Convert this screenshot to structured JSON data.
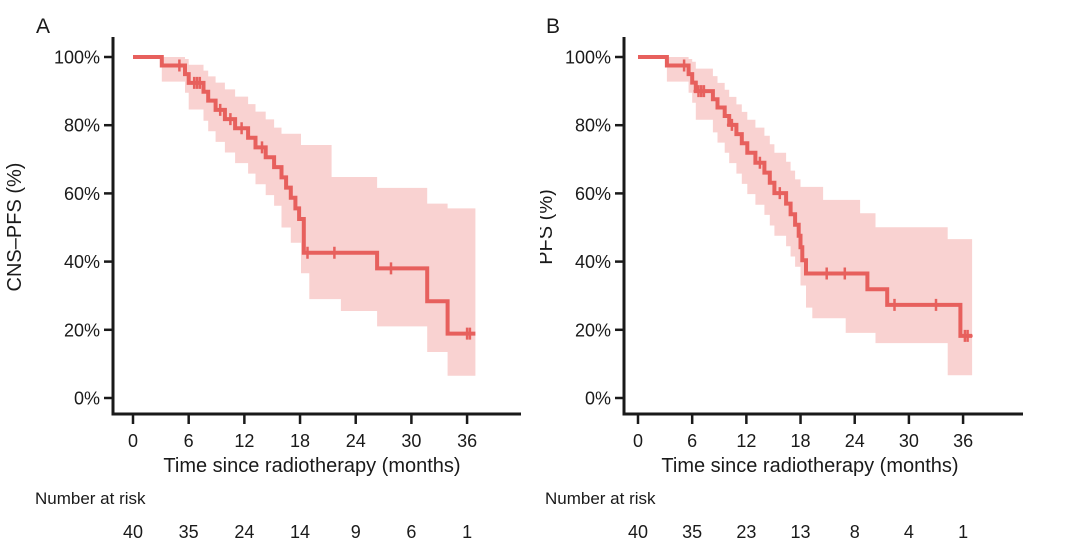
{
  "figure": {
    "background": "#ffffff",
    "description": "Two-panel Kaplan-Meier survival figure"
  },
  "colors": {
    "curve": "#e7605d",
    "confidence_band": "#f9d2d1",
    "axis": "#1a1a1a",
    "text": "#1a1a1a"
  },
  "chart_data": [
    {
      "type": "line",
      "variant": "kaplan-meier-step",
      "panel_label": "A",
      "ylabel": "CNS–PFS (%)",
      "xlabel": "Time since radiotherapy (months)",
      "xlim": [
        0,
        39
      ],
      "ylim": [
        0,
        100
      ],
      "grid": false,
      "legend": "none",
      "xticks": [
        0,
        6,
        12,
        18,
        24,
        30,
        36
      ],
      "ytick_values": [
        0,
        20,
        40,
        60,
        80,
        100
      ],
      "ytick_labels": [
        "0%",
        "20%",
        "40%",
        "60%",
        "80%",
        "100%"
      ],
      "risk_label": "Number at risk",
      "risk_times": [
        0,
        6,
        12,
        18,
        24,
        30,
        36
      ],
      "risk_counts": [
        40,
        35,
        24,
        14,
        9,
        6,
        1
      ],
      "curve_end_month": 36.9,
      "survival_steps": [
        {
          "t": 0,
          "s": 100
        },
        {
          "t": 3.1,
          "s": 97.5
        },
        {
          "t": 5.6,
          "s": 95.0
        },
        {
          "t": 6.0,
          "s": 92.4
        },
        {
          "t": 7.6,
          "s": 89.8
        },
        {
          "t": 8.1,
          "s": 87.2
        },
        {
          "t": 8.9,
          "s": 84.5
        },
        {
          "t": 9.9,
          "s": 81.8
        },
        {
          "t": 11.0,
          "s": 79.1
        },
        {
          "t": 12.4,
          "s": 76.3
        },
        {
          "t": 13.2,
          "s": 73.5
        },
        {
          "t": 14.3,
          "s": 70.6
        },
        {
          "t": 15.2,
          "s": 67.7
        },
        {
          "t": 16.0,
          "s": 64.7
        },
        {
          "t": 16.5,
          "s": 61.7
        },
        {
          "t": 17.0,
          "s": 58.7
        },
        {
          "t": 17.5,
          "s": 55.6
        },
        {
          "t": 17.9,
          "s": 52.5
        },
        {
          "t": 18.4,
          "s": 42.6
        },
        {
          "t": 26.3,
          "s": 38.0
        },
        {
          "t": 31.7,
          "s": 28.4
        },
        {
          "t": 33.9,
          "s": 18.9
        }
      ],
      "censor_marks": [
        {
          "t": 5.0,
          "s": 97.5
        },
        {
          "t": 6.6,
          "s": 92.4
        },
        {
          "t": 6.9,
          "s": 92.4
        },
        {
          "t": 7.2,
          "s": 92.4
        },
        {
          "t": 9.4,
          "s": 84.5
        },
        {
          "t": 10.5,
          "s": 81.8
        },
        {
          "t": 11.7,
          "s": 79.1
        },
        {
          "t": 13.9,
          "s": 73.5
        },
        {
          "t": 18.8,
          "s": 42.6
        },
        {
          "t": 21.7,
          "s": 42.6
        },
        {
          "t": 27.8,
          "s": 38.0
        },
        {
          "t": 36.0,
          "s": 18.9
        },
        {
          "t": 36.3,
          "s": 18.9
        }
      ],
      "confidence_band": [
        {
          "t": 3.1,
          "lo": 92.8,
          "hi": 100
        },
        {
          "t": 5.6,
          "lo": 89.5,
          "hi": 99.4
        },
        {
          "t": 6.0,
          "lo": 84.6,
          "hi": 97.7
        },
        {
          "t": 7.6,
          "lo": 81.3,
          "hi": 96.0
        },
        {
          "t": 8.1,
          "lo": 78.2,
          "hi": 94.3
        },
        {
          "t": 8.9,
          "lo": 75.1,
          "hi": 92.5
        },
        {
          "t": 9.9,
          "lo": 72.0,
          "hi": 90.5
        },
        {
          "t": 11.0,
          "lo": 68.9,
          "hi": 88.4
        },
        {
          "t": 12.4,
          "lo": 65.8,
          "hi": 86.2
        },
        {
          "t": 13.2,
          "lo": 62.7,
          "hi": 84.0
        },
        {
          "t": 14.3,
          "lo": 59.5,
          "hi": 81.7
        },
        {
          "t": 15.2,
          "lo": 56.4,
          "hi": 79.3
        },
        {
          "t": 16.0,
          "lo": 50.0,
          "hi": 77.5
        },
        {
          "t": 17.0,
          "lo": 45.5,
          "hi": 77.5
        },
        {
          "t": 18.1,
          "lo": 36.6,
          "hi": 74.2
        },
        {
          "t": 19.0,
          "lo": 29.0,
          "hi": 74.2
        },
        {
          "t": 21.4,
          "lo": 29.0,
          "hi": 64.8
        },
        {
          "t": 22.4,
          "lo": 25.5,
          "hi": 64.8
        },
        {
          "t": 26.3,
          "lo": 21.0,
          "hi": 61.6
        },
        {
          "t": 31.7,
          "lo": 13.5,
          "hi": 57.0
        },
        {
          "t": 33.9,
          "lo": 6.5,
          "hi": 55.6
        }
      ]
    },
    {
      "type": "line",
      "variant": "kaplan-meier-step",
      "panel_label": "B",
      "ylabel": "PFS (%)",
      "xlabel": "Time since radiotherapy (months)",
      "xlim": [
        0,
        39
      ],
      "ylim": [
        0,
        100
      ],
      "grid": false,
      "legend": "none",
      "xticks": [
        0,
        6,
        12,
        18,
        24,
        30,
        36
      ],
      "ytick_values": [
        0,
        20,
        40,
        60,
        80,
        100
      ],
      "ytick_labels": [
        "0%",
        "20%",
        "40%",
        "60%",
        "80%",
        "100%"
      ],
      "risk_label": "Number at risk",
      "risk_times": [
        0,
        6,
        12,
        18,
        24,
        30,
        36
      ],
      "risk_counts": [
        40,
        35,
        23,
        13,
        8,
        4,
        1
      ],
      "curve_end_month": 37.0,
      "survival_steps": [
        {
          "t": 0,
          "s": 100
        },
        {
          "t": 3.2,
          "s": 97.5
        },
        {
          "t": 5.6,
          "s": 95.0
        },
        {
          "t": 6.0,
          "s": 92.5
        },
        {
          "t": 6.4,
          "s": 90.0
        },
        {
          "t": 8.3,
          "s": 87.6
        },
        {
          "t": 8.8,
          "s": 85.2
        },
        {
          "t": 9.6,
          "s": 82.7
        },
        {
          "t": 10.1,
          "s": 80.1
        },
        {
          "t": 10.9,
          "s": 77.4
        },
        {
          "t": 11.5,
          "s": 74.7
        },
        {
          "t": 12.1,
          "s": 71.9
        },
        {
          "t": 13.0,
          "s": 69.0
        },
        {
          "t": 14.0,
          "s": 66.1
        },
        {
          "t": 14.6,
          "s": 63.1
        },
        {
          "t": 15.1,
          "s": 60.1
        },
        {
          "t": 16.4,
          "s": 57.0
        },
        {
          "t": 16.9,
          "s": 53.9
        },
        {
          "t": 17.4,
          "s": 50.8
        },
        {
          "t": 17.8,
          "s": 47.6
        },
        {
          "t": 18.0,
          "s": 44.2
        },
        {
          "t": 18.2,
          "s": 40.4
        },
        {
          "t": 18.6,
          "s": 36.5
        },
        {
          "t": 25.4,
          "s": 31.9
        },
        {
          "t": 27.6,
          "s": 27.3
        },
        {
          "t": 35.7,
          "s": 18.2
        }
      ],
      "censor_marks": [
        {
          "t": 5.1,
          "s": 97.5
        },
        {
          "t": 6.7,
          "s": 90.0
        },
        {
          "t": 7.0,
          "s": 90.0
        },
        {
          "t": 7.3,
          "s": 90.0
        },
        {
          "t": 10.4,
          "s": 80.1
        },
        {
          "t": 13.5,
          "s": 69.0
        },
        {
          "t": 15.7,
          "s": 60.1
        },
        {
          "t": 20.9,
          "s": 36.5
        },
        {
          "t": 22.9,
          "s": 36.5
        },
        {
          "t": 28.4,
          "s": 27.3
        },
        {
          "t": 33.0,
          "s": 27.3
        },
        {
          "t": 36.2,
          "s": 18.2
        },
        {
          "t": 36.5,
          "s": 18.2
        }
      ],
      "confidence_band": [
        {
          "t": 3.2,
          "lo": 92.8,
          "hi": 100
        },
        {
          "t": 5.6,
          "lo": 89.5,
          "hi": 99.4
        },
        {
          "t": 6.0,
          "lo": 86.6,
          "hi": 98.6
        },
        {
          "t": 6.4,
          "lo": 81.6,
          "hi": 96.6
        },
        {
          "t": 8.3,
          "lo": 77.9,
          "hi": 94.4
        },
        {
          "t": 8.8,
          "lo": 74.9,
          "hi": 92.4
        },
        {
          "t": 9.6,
          "lo": 71.9,
          "hi": 90.4
        },
        {
          "t": 10.1,
          "lo": 68.9,
          "hi": 88.3
        },
        {
          "t": 10.9,
          "lo": 65.8,
          "hi": 86.1
        },
        {
          "t": 11.5,
          "lo": 62.8,
          "hi": 83.9
        },
        {
          "t": 12.1,
          "lo": 59.8,
          "hi": 81.6
        },
        {
          "t": 13.0,
          "lo": 56.7,
          "hi": 79.3
        },
        {
          "t": 14.0,
          "lo": 53.7,
          "hi": 76.9
        },
        {
          "t": 14.6,
          "lo": 50.6,
          "hi": 74.4
        },
        {
          "t": 15.1,
          "lo": 47.6,
          "hi": 71.9
        },
        {
          "t": 16.4,
          "lo": 44.5,
          "hi": 69.3
        },
        {
          "t": 16.9,
          "lo": 41.5,
          "hi": 66.7
        },
        {
          "t": 17.4,
          "lo": 38.5,
          "hi": 64.1
        },
        {
          "t": 18.0,
          "lo": 33.0,
          "hi": 61.9
        },
        {
          "t": 18.6,
          "lo": 26.5,
          "hi": 61.9
        },
        {
          "t": 19.3,
          "lo": 23.4,
          "hi": 61.9
        },
        {
          "t": 20.5,
          "lo": 23.4,
          "hi": 58.1
        },
        {
          "t": 23.0,
          "lo": 19.1,
          "hi": 58.1
        },
        {
          "t": 24.6,
          "lo": 19.1,
          "hi": 54.2
        },
        {
          "t": 26.3,
          "lo": 16.1,
          "hi": 50.1
        },
        {
          "t": 34.3,
          "lo": 6.7,
          "hi": 46.6
        }
      ]
    }
  ]
}
